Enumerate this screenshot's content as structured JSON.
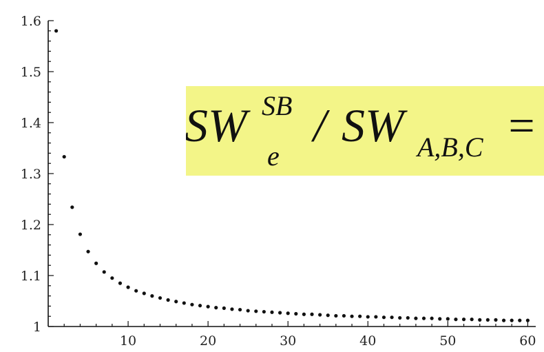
{
  "chart_data": {
    "type": "scatter",
    "title": "",
    "xlabel": "",
    "ylabel": "",
    "xlim": [
      0,
      61
    ],
    "ylim": [
      1,
      1.6
    ],
    "x_ticks": [
      10,
      20,
      30,
      40,
      50,
      60
    ],
    "y_ticks": [
      1,
      1.1,
      1.2,
      1.3,
      1.4,
      1.5,
      1.6
    ],
    "x_tick_labels": [
      "10",
      "20",
      "30",
      "40",
      "50",
      "60"
    ],
    "y_tick_labels": [
      "1",
      "1.1",
      "1.2",
      "1.3",
      "1.4",
      "1.5",
      "1.6"
    ],
    "grid": false,
    "series": [
      {
        "x": [
          1,
          2,
          3,
          4,
          5,
          6,
          7,
          8,
          9,
          10,
          11,
          12,
          13,
          14,
          15,
          16,
          17,
          18,
          19,
          20,
          21,
          22,
          23,
          24,
          25,
          26,
          27,
          28,
          29,
          30,
          31,
          32,
          33,
          34,
          35,
          36,
          37,
          38,
          39,
          40,
          41,
          42,
          43,
          44,
          45,
          46,
          47,
          48,
          49,
          50,
          51,
          52,
          53,
          54,
          55,
          56,
          57,
          58,
          59,
          60
        ],
        "y": [
          1.58,
          1.333,
          1.234,
          1.181,
          1.147,
          1.124,
          1.107,
          1.095,
          1.085,
          1.077,
          1.07,
          1.065,
          1.06,
          1.056,
          1.052,
          1.049,
          1.046,
          1.043,
          1.041,
          1.039,
          1.037,
          1.036,
          1.034,
          1.033,
          1.031,
          1.03,
          1.029,
          1.028,
          1.027,
          1.026,
          1.025,
          1.024,
          1.024,
          1.023,
          1.022,
          1.021,
          1.021,
          1.02,
          1.02,
          1.019,
          1.019,
          1.018,
          1.018,
          1.017,
          1.017,
          1.016,
          1.016,
          1.016,
          1.015,
          1.015,
          1.014,
          1.014,
          1.014,
          1.013,
          1.013,
          1.013,
          1.012,
          1.012,
          1.012,
          1.012
        ]
      }
    ]
  },
  "formula": {
    "main1": "SW",
    "sup1": "SB",
    "sub1": "e",
    "slash": "/",
    "main2": "SW",
    "sub2": "A,B,C",
    "equals": "="
  }
}
